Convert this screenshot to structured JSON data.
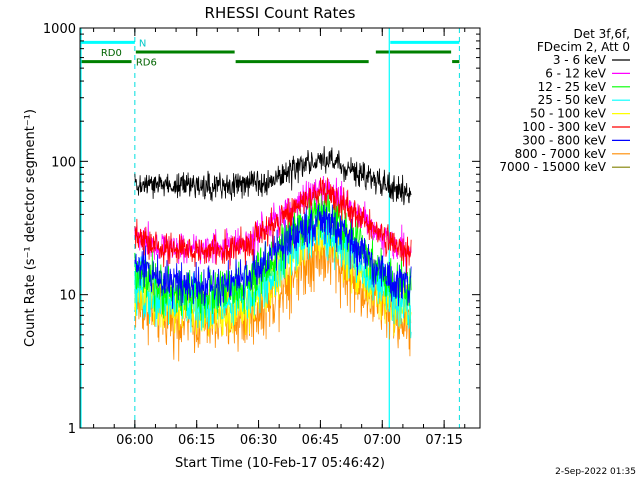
{
  "chart_data": {
    "type": "line",
    "title": "RHESSI Count Rates",
    "xlabel": "Start Time (10-Feb-17 05:46:42)",
    "ylabel": "Count Rate (s⁻¹ detector segment⁻¹)",
    "yscale": "log",
    "ylim": [
      1,
      1000
    ],
    "xlim_minutes": [
      0,
      97
    ],
    "x_ticks": [
      {
        "t": 13.3,
        "label": "06:00"
      },
      {
        "t": 28.3,
        "label": "06:15"
      },
      {
        "t": 43.3,
        "label": "06:30"
      },
      {
        "t": 58.3,
        "label": "06:45"
      },
      {
        "t": 73.3,
        "label": "07:00"
      },
      {
        "t": 88.3,
        "label": "07:15"
      }
    ],
    "y_ticks": [
      {
        "v": 1,
        "label": "1"
      },
      {
        "v": 10,
        "label": "10"
      },
      {
        "v": 100,
        "label": "100"
      },
      {
        "v": 1000,
        "label": "1000"
      }
    ],
    "legend_header": [
      "Det 3f,6f,",
      "FDecim 2, Att 0"
    ],
    "legend_position": "top-right",
    "grid": false,
    "data_range_minutes": [
      13.3,
      80.3
    ],
    "series": [
      {
        "name": "3 - 6 keV",
        "color": "#000000",
        "x": [
          13.3,
          20,
          30,
          40,
          46,
          52,
          56,
          58.3,
          62,
          66,
          72,
          76,
          80.3
        ],
        "y": [
          65,
          67,
          65,
          67,
          73,
          85,
          98,
          103,
          98,
          85,
          70,
          62,
          57
        ]
      },
      {
        "name": "6 - 12 keV",
        "color": "#ff00ff",
        "x": [
          13.3,
          20,
          30,
          40,
          46,
          52,
          56,
          58.3,
          62,
          66,
          72,
          76,
          80.3
        ],
        "y": [
          28,
          23,
          22,
          24,
          32,
          47,
          58,
          62,
          56,
          44,
          30,
          24,
          21
        ]
      },
      {
        "name": "12 - 25 keV",
        "color": "#00ff00",
        "x": [
          13.3,
          20,
          30,
          40,
          46,
          52,
          56,
          58.3,
          62,
          66,
          72,
          76,
          80.3
        ],
        "y": [
          14,
          11,
          10,
          11,
          17,
          30,
          40,
          43,
          38,
          27,
          16,
          12,
          11
        ]
      },
      {
        "name": "25 - 50 keV",
        "color": "#00ffff",
        "x": [
          13.3,
          20,
          30,
          40,
          46,
          52,
          56,
          58.3,
          62,
          66,
          72,
          76,
          80.3
        ],
        "y": [
          11,
          9,
          8.5,
          9,
          13,
          22,
          29,
          31,
          27,
          19,
          12,
          9.5,
          8.5
        ]
      },
      {
        "name": "50 - 100 keV",
        "color": "#ffff00",
        "x": [
          13.3,
          20,
          30,
          40,
          46,
          52,
          56,
          58.3,
          62,
          66,
          72,
          76,
          80.3
        ],
        "y": [
          10,
          8,
          7.5,
          8,
          12,
          20,
          27,
          29,
          25,
          17,
          11,
          8.5,
          7.5
        ]
      },
      {
        "name": "100 - 300 keV",
        "color": "#ff0000",
        "x": [
          13.3,
          20,
          30,
          40,
          46,
          52,
          56,
          58.3,
          62,
          66,
          72,
          76,
          80.3
        ],
        "y": [
          27,
          22,
          21,
          23,
          31,
          45,
          56,
          60,
          54,
          42,
          29,
          23,
          20
        ]
      },
      {
        "name": "300 - 800 keV",
        "color": "#0000ff",
        "x": [
          13.3,
          20,
          30,
          40,
          46,
          52,
          56,
          58.3,
          62,
          66,
          72,
          76,
          80.3
        ],
        "y": [
          17,
          13,
          12,
          13,
          19,
          28,
          34,
          36,
          32,
          24,
          16,
          12.5,
          11.5
        ]
      },
      {
        "name": "800 - 7000 keV",
        "color": "#ff8c00",
        "x": [
          13.3,
          20,
          30,
          40,
          46,
          52,
          56,
          58.3,
          62,
          66,
          72,
          76,
          80.3
        ],
        "y": [
          9,
          7,
          6.2,
          6.5,
          9,
          15,
          19,
          21,
          18,
          13,
          9,
          7,
          6.2
        ]
      },
      {
        "name": "7000 - 15000 keV",
        "color": "#808000",
        "x": [],
        "y": []
      }
    ],
    "flags": [
      {
        "label": "N",
        "color": "#00ffff",
        "y_level": 780,
        "segments": [
          [
            0,
            13.3
          ],
          [
            75,
            92
          ]
        ]
      },
      {
        "label": "RD0",
        "color": "#008000",
        "y_level": 660,
        "segments": [
          [
            13.3,
            37.5
          ],
          [
            71.5,
            90
          ]
        ]
      },
      {
        "label": "RD6",
        "color": "#008000",
        "y_level": 560,
        "segments": [
          [
            0,
            12.5
          ],
          [
            37.5,
            70
          ],
          [
            90,
            92
          ]
        ]
      }
    ],
    "vlines_solid": [
      0,
      75
    ],
    "vlines_dashed": [
      13.3,
      92
    ]
  },
  "footer": {
    "timestamp": "2-Sep-2022 01:35"
  }
}
